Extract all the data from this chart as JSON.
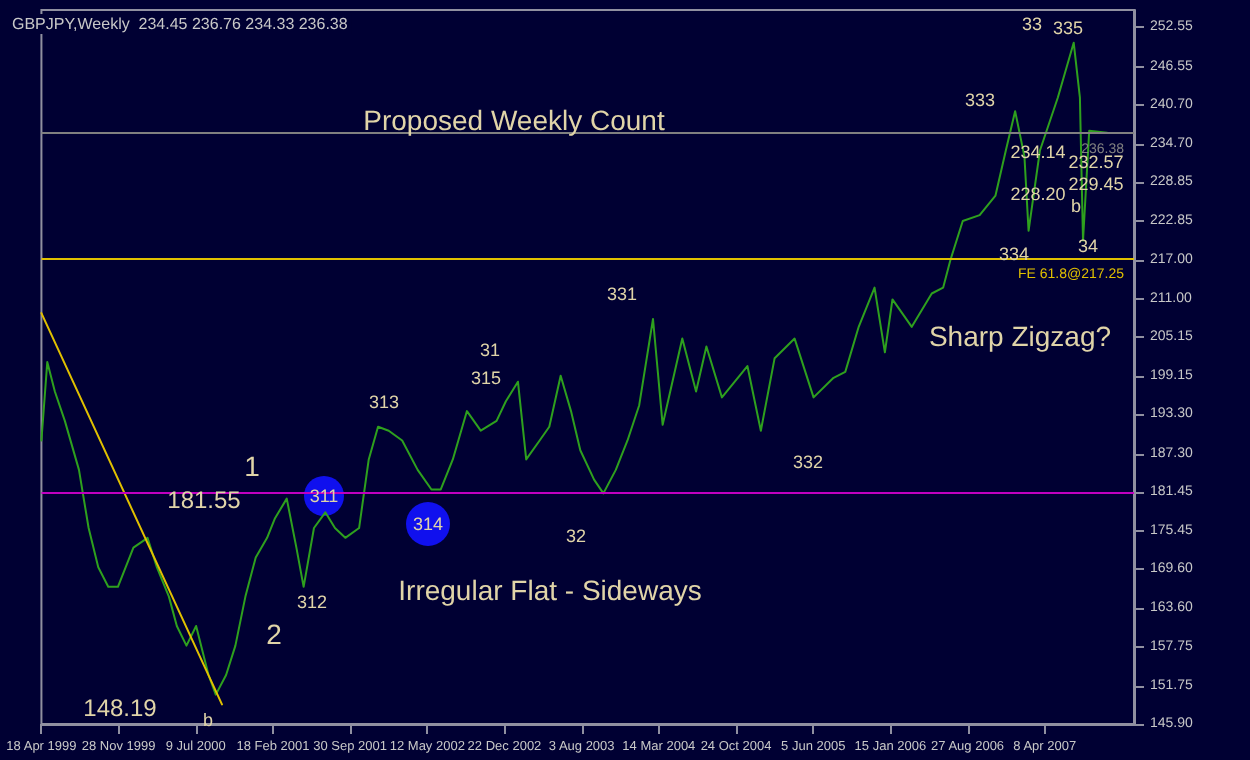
{
  "chart_data": {
    "type": "line",
    "title": "GBPJPY,Weekly  234.45 236.76 234.33 236.38",
    "x": [
      "1999-04-18",
      "1999-05-05",
      "1999-05-27",
      "1999-06-25",
      "1999-08-05",
      "1999-09-02",
      "1999-09-30",
      "1999-10-29",
      "1999-11-26",
      "2000-01-10",
      "2000-02-20",
      "2000-03-18",
      "2000-04-22",
      "2000-05-15",
      "2000-06-12",
      "2000-07-10",
      "2000-08-15",
      "2000-09-05",
      "2000-10-05",
      "2000-11-01",
      "2000-11-30",
      "2000-12-30",
      "2001-02-01",
      "2001-02-24",
      "2001-03-30",
      "2001-04-27",
      "2001-05-18",
      "2001-06-17",
      "2001-07-20",
      "2001-08-17",
      "2001-09-16",
      "2001-10-26",
      "2001-11-23",
      "2001-12-20",
      "2002-01-20",
      "2002-02-28",
      "2002-04-14",
      "2002-05-24",
      "2002-06-20",
      "2002-07-25",
      "2002-09-04",
      "2002-10-14",
      "2002-11-29",
      "2002-12-26",
      "2003-01-30",
      "2003-02-23",
      "2003-04-03",
      "2003-05-01",
      "2003-06-03",
      "2003-07-03",
      "2003-07-30",
      "2003-09-08",
      "2003-10-05",
      "2003-11-10",
      "2003-12-14",
      "2004-01-17",
      "2004-02-26",
      "2004-03-25",
      "2004-05-21",
      "2004-06-30",
      "2004-07-30",
      "2004-09-13",
      "2004-11-26",
      "2005-01-04",
      "2005-02-13",
      "2005-04-12",
      "2005-06-06",
      "2005-08-03",
      "2005-09-06",
      "2005-10-15",
      "2005-11-30",
      "2005-12-30",
      "2006-01-21",
      "2006-03-18",
      "2006-05-15",
      "2006-06-17",
      "2006-07-08",
      "2006-08-13",
      "2006-10-01",
      "2006-11-16",
      "2006-12-16",
      "2007-01-12",
      "2007-02-08",
      "2007-02-20",
      "2007-03-25",
      "2007-05-16",
      "2007-07-01",
      "2007-07-19",
      "2007-07-28",
      "2007-08-15",
      "2007-10-06"
    ],
    "series": [
      {
        "color": "#2ea01e",
        "values": [
          189.3,
          201.3,
          196.8,
          192.3,
          184.8,
          175.9,
          169.9,
          166.9,
          166.9,
          172.9,
          174.4,
          169.9,
          165.4,
          160.9,
          157.9,
          160.9,
          153.4,
          150.4,
          153.4,
          157.9,
          165.4,
          171.4,
          174.4,
          177.4,
          180.4,
          172.9,
          166.9,
          175.9,
          178.3,
          175.9,
          174.4,
          175.9,
          186.4,
          191.4,
          190.8,
          189.3,
          184.8,
          181.8,
          181.8,
          186.4,
          193.8,
          190.8,
          192.3,
          195.3,
          198.3,
          186.4,
          189.3,
          191.4,
          199.2,
          193.8,
          187.8,
          183.3,
          181.2,
          184.8,
          189.3,
          194.7,
          207.9,
          191.7,
          204.9,
          196.8,
          203.7,
          195.9,
          200.7,
          190.8,
          201.9,
          204.9,
          195.9,
          198.9,
          199.8,
          206.7,
          212.7,
          202.8,
          210.9,
          206.7,
          211.8,
          212.7,
          216.9,
          222.9,
          223.8,
          226.8,
          233.7,
          239.7,
          232.8,
          221.4,
          233.7,
          241.8,
          250.2,
          241.8,
          219.9,
          236.7,
          236.4
        ]
      },
      {
        "type": "line",
        "color": "#e0c000",
        "x": [
          "1999-04-18",
          "2000-09-23"
        ],
        "values": [
          208.8,
          148.9
        ]
      }
    ],
    "xlim": [
      "1999-04-18",
      "2007-12-23"
    ],
    "xticks": [
      {
        "value": "1999-04-18",
        "label": "18 Apr 1999"
      },
      {
        "value": "1999-11-28",
        "label": "28 Nov 1999"
      },
      {
        "value": "2000-07-09",
        "label": "9 Jul 2000"
      },
      {
        "value": "2001-02-18",
        "label": "18 Feb 2001"
      },
      {
        "value": "2001-09-30",
        "label": "30 Sep 2001"
      },
      {
        "value": "2002-05-12",
        "label": "12 May 2002"
      },
      {
        "value": "2002-12-22",
        "label": "22 Dec 2002"
      },
      {
        "value": "2003-08-03",
        "label": "3 Aug 2003"
      },
      {
        "value": "2004-03-14",
        "label": "14 Mar 2004"
      },
      {
        "value": "2004-10-24",
        "label": "24 Oct 2004"
      },
      {
        "value": "2005-06-05",
        "label": "5 Jun 2005"
      },
      {
        "value": "2006-01-15",
        "label": "15 Jan 2006"
      },
      {
        "value": "2006-08-27",
        "label": "27 Aug 2006"
      },
      {
        "value": "2007-04-08",
        "label": "8 Apr 2007"
      }
    ],
    "ylim": [
      145.9,
      255.2
    ],
    "yticks": [
      252.55,
      246.55,
      {
        "value": 240.7,
        "label": "240.70"
      },
      {
        "value": 234.7,
        "label": "234.70"
      },
      228.85,
      222.85,
      {
        "value": 217,
        "label": "217.00"
      },
      {
        "value": 211,
        "label": "211.00"
      },
      205.15,
      199.15,
      {
        "value": 193.3,
        "label": "193.30"
      },
      {
        "value": 187.3,
        "label": "187.30"
      },
      181.45,
      175.45,
      {
        "value": 169.6,
        "label": "169.60"
      },
      {
        "value": 163.6,
        "label": "163.60"
      },
      157.75,
      151.75,
      {
        "value": 145.9,
        "label": "145.90"
      }
    ],
    "ref_lines": [
      {
        "axis": "y",
        "value": 181.45,
        "label": null,
        "color": "#c000c0"
      },
      {
        "axis": "y",
        "value": 217.25,
        "label": "FE 61.8@217.25",
        "color": "#e0c000"
      },
      {
        "axis": "y",
        "value": 236.38,
        "label": "236.38",
        "color": "#808080"
      }
    ],
    "annotations": [
      "Proposed Weekly Count",
      "Irregular Flat - Sideways",
      "Sharp Zigzag?",
      "311",
      "314",
      "1",
      "2",
      "312",
      "313",
      "315",
      "31",
      "32",
      "331",
      "332",
      "333",
      "334",
      "33",
      "335",
      "34",
      "b",
      "b",
      "181.55",
      "148.19",
      "234.14",
      "228.20",
      "232.57",
      "229.45"
    ],
    "grid": false,
    "marker": "none"
  }
}
